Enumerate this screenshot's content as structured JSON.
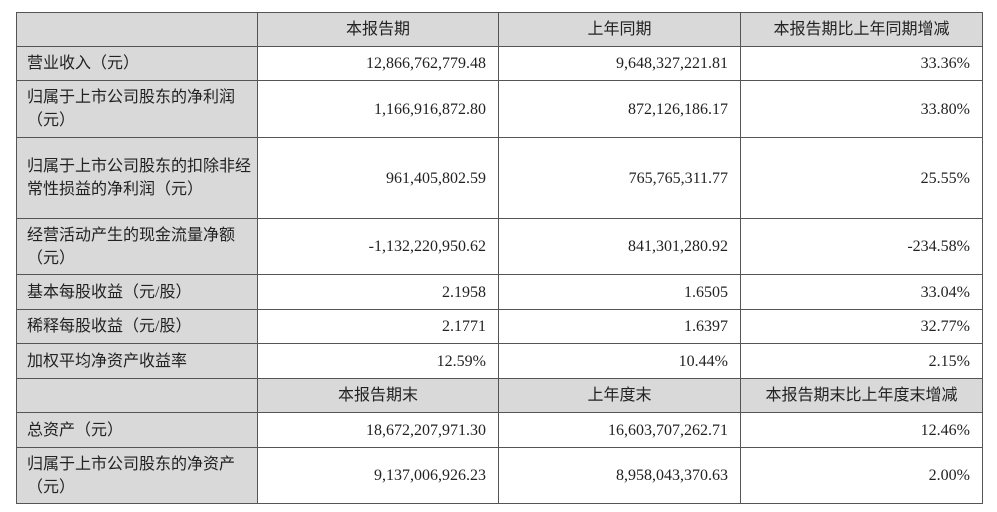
{
  "header1": {
    "col1": "本报告期",
    "col2": "上年同期",
    "col3": "本报告期比上年同期增减"
  },
  "rows1": [
    {
      "label": "营业收入（元）",
      "current": "12,866,762,779.48",
      "previous": "9,648,327,221.81",
      "change": "33.36%"
    },
    {
      "label": "归属于上市公司股东的净利润（元）",
      "current": "1,166,916,872.80",
      "previous": "872,126,186.17",
      "change": "33.80%"
    },
    {
      "label": "归属于上市公司股东的扣除非经常性损益的净利润（元）",
      "current": "961,405,802.59",
      "previous": "765,765,311.77",
      "change": "25.55%"
    },
    {
      "label": "经营活动产生的现金流量净额（元）",
      "current": "-1,132,220,950.62",
      "previous": "841,301,280.92",
      "change": "-234.58%"
    },
    {
      "label": "基本每股收益（元/股）",
      "current": "2.1958",
      "previous": "1.6505",
      "change": "33.04%"
    },
    {
      "label": "稀释每股收益（元/股）",
      "current": "2.1771",
      "previous": "1.6397",
      "change": "32.77%"
    },
    {
      "label": "加权平均净资产收益率",
      "current": "12.59%",
      "previous": "10.44%",
      "change": "2.15%"
    }
  ],
  "header2": {
    "col1": "本报告期末",
    "col2": "上年度末",
    "col3": "本报告期末比上年度末增减"
  },
  "rows2": [
    {
      "label": "总资产（元）",
      "current": "18,672,207,971.30",
      "previous": "16,603,707,262.71",
      "change": "12.46%"
    },
    {
      "label": "归属于上市公司股东的净资产（元）",
      "current": "9,137,006,926.23",
      "previous": "8,958,043,370.63",
      "change": "2.00%"
    }
  ]
}
